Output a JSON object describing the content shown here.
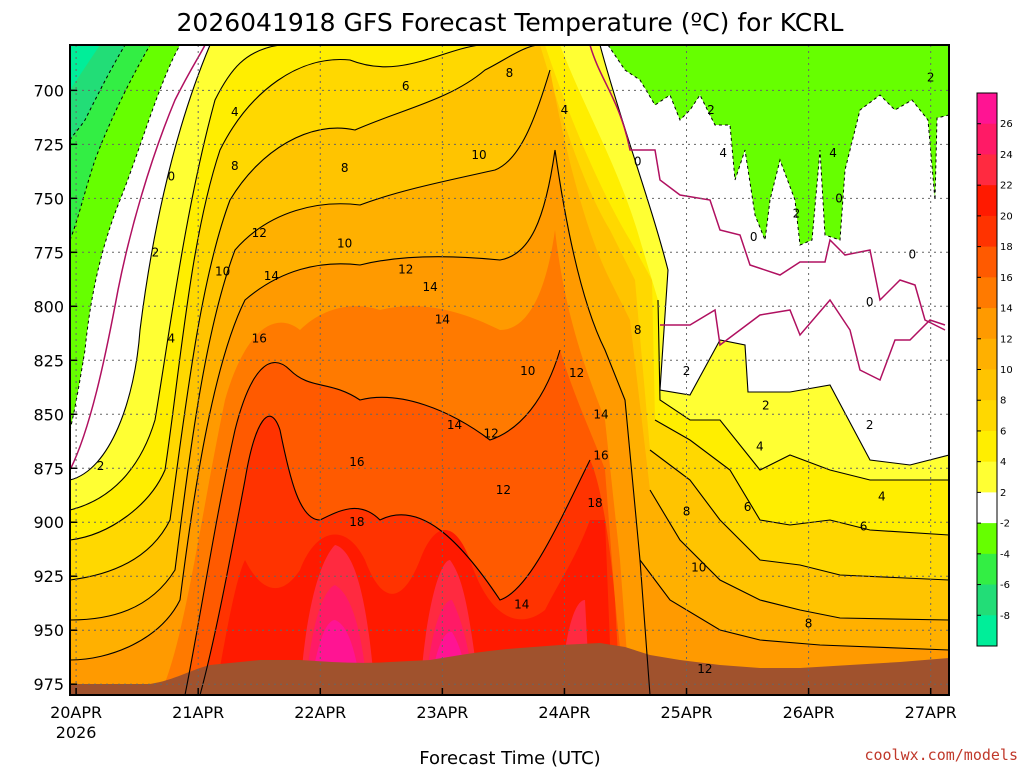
{
  "chart_data": {
    "type": "heatmap",
    "title": "2026041918 GFS Forecast Temperature (ºC) for KCRL",
    "xlabel": "Forecast Time (UTC)",
    "credit": "coolwx.com/models",
    "y_axis": {
      "ticks": [
        700,
        725,
        750,
        775,
        800,
        825,
        850,
        875,
        900,
        925,
        950,
        975
      ],
      "ylim": [
        980,
        679
      ],
      "inverted": true
    },
    "x_axis": {
      "ticks": [
        "20APR",
        "21APR",
        "22APR",
        "23APR",
        "24APR",
        "25APR",
        "26APR",
        "27APR"
      ],
      "first_tick_sublabel": "2026",
      "xlim_days": [
        -0.05,
        7.15
      ]
    },
    "grid": true,
    "colorbar": {
      "placement": "right",
      "labels": [
        "26",
        "24",
        "22",
        "20",
        "18",
        "16",
        "14",
        "12",
        "10",
        "8",
        "6",
        "4",
        "2",
        "-2",
        "-4",
        "-6",
        "-8"
      ],
      "colors": [
        "#ff1493",
        "#ff1a66",
        "#ff2a40",
        "#ff1a00",
        "#ff3300",
        "#ff5a00",
        "#ff7a00",
        "#ff9a00",
        "#ffb000",
        "#ffc400",
        "#ffd800",
        "#ffee00",
        "#ffff33",
        "#ffffff",
        "#66ff00",
        "#33ee44",
        "#22dd77",
        "#00ee99"
      ]
    },
    "terrain_color": "#a0522d",
    "contour_labels": [
      {
        "t": 0.2,
        "p": 874,
        "v": "2"
      },
      {
        "t": 0.65,
        "p": 775,
        "v": "2"
      },
      {
        "t": 0.78,
        "p": 815,
        "v": "4"
      },
      {
        "t": 0.78,
        "p": 740,
        "v": "0"
      },
      {
        "t": 1.3,
        "p": 710,
        "v": "4"
      },
      {
        "t": 1.3,
        "p": 735,
        "v": "8"
      },
      {
        "t": 1.2,
        "p": 784,
        "v": "10"
      },
      {
        "t": 1.5,
        "p": 766,
        "v": "12"
      },
      {
        "t": 1.6,
        "p": 786,
        "v": "14"
      },
      {
        "t": 1.5,
        "p": 815,
        "v": "16"
      },
      {
        "t": 2.2,
        "p": 736,
        "v": "8"
      },
      {
        "t": 2.2,
        "p": 771,
        "v": "10"
      },
      {
        "t": 2.7,
        "p": 783,
        "v": "12"
      },
      {
        "t": 2.9,
        "p": 791,
        "v": "14"
      },
      {
        "t": 2.7,
        "p": 698,
        "v": "6"
      },
      {
        "t": 3.3,
        "p": 730,
        "v": "10"
      },
      {
        "t": 2.3,
        "p": 872,
        "v": "16"
      },
      {
        "t": 2.3,
        "p": 900,
        "v": "18"
      },
      {
        "t": 3.0,
        "p": 806,
        "v": "14"
      },
      {
        "t": 3.1,
        "p": 855,
        "v": "14"
      },
      {
        "t": 3.4,
        "p": 859,
        "v": "12"
      },
      {
        "t": 3.5,
        "p": 885,
        "v": "12"
      },
      {
        "t": 3.7,
        "p": 830,
        "v": "10"
      },
      {
        "t": 3.55,
        "p": 692,
        "v": "8"
      },
      {
        "t": 4.0,
        "p": 709,
        "v": "4"
      },
      {
        "t": 4.1,
        "p": 831,
        "v": "12"
      },
      {
        "t": 4.3,
        "p": 850,
        "v": "14"
      },
      {
        "t": 4.3,
        "p": 869,
        "v": "16"
      },
      {
        "t": 4.25,
        "p": 891,
        "v": "18"
      },
      {
        "t": 4.6,
        "p": 811,
        "v": "8"
      },
      {
        "t": 4.6,
        "p": 733,
        "v": "0"
      },
      {
        "t": 3.65,
        "p": 938,
        "v": "14"
      },
      {
        "t": 5.2,
        "p": 709,
        "v": "2"
      },
      {
        "t": 5.3,
        "p": 729,
        "v": "4"
      },
      {
        "t": 5.0,
        "p": 830,
        "v": "2"
      },
      {
        "t": 5.65,
        "p": 846,
        "v": "2"
      },
      {
        "t": 5.55,
        "p": 768,
        "v": "0"
      },
      {
        "t": 5.9,
        "p": 757,
        "v": "2"
      },
      {
        "t": 6.2,
        "p": 729,
        "v": "4"
      },
      {
        "t": 5.6,
        "p": 865,
        "v": "4"
      },
      {
        "t": 5.5,
        "p": 893,
        "v": "6"
      },
      {
        "t": 6.5,
        "p": 855,
        "v": "2"
      },
      {
        "t": 6.6,
        "p": 888,
        "v": "4"
      },
      {
        "t": 6.45,
        "p": 902,
        "v": "6"
      },
      {
        "t": 6.25,
        "p": 750,
        "v": "0"
      },
      {
        "t": 6.5,
        "p": 798,
        "v": "0"
      },
      {
        "t": 6.85,
        "p": 776,
        "v": "0"
      },
      {
        "t": 7.0,
        "p": 694,
        "v": "2"
      },
      {
        "t": 5.0,
        "p": 895,
        "v": "8"
      },
      {
        "t": 5.1,
        "p": 921,
        "v": "10"
      },
      {
        "t": 5.15,
        "p": 968,
        "v": "12"
      },
      {
        "t": 6.0,
        "p": 947,
        "v": "8"
      }
    ]
  }
}
